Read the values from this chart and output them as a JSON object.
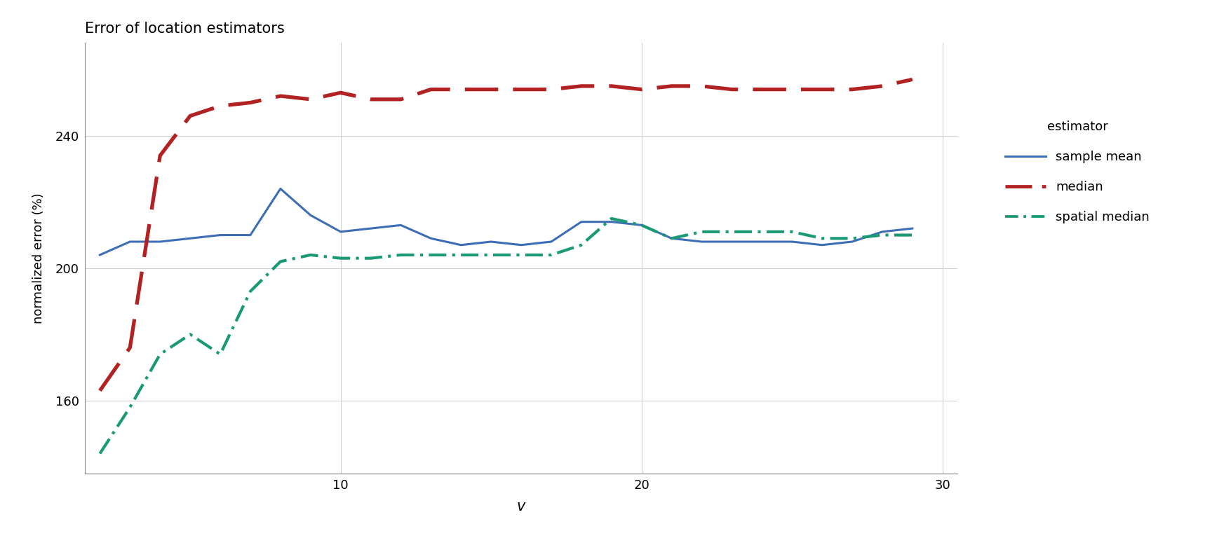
{
  "title": "Error of location estimators",
  "xlabel": "v",
  "ylabel": "normalized error (%)",
  "legend_title": "estimator",
  "background_color": "#ffffff",
  "panel_color": "#ffffff",
  "grid_color": "#d0d0d0",
  "xlim": [
    1.5,
    30.5
  ],
  "ylim": [
    138,
    268
  ],
  "yticks": [
    160,
    200,
    240
  ],
  "xticks": [
    10,
    20,
    30
  ],
  "x": [
    2,
    3,
    4,
    5,
    6,
    7,
    8,
    9,
    10,
    11,
    12,
    13,
    14,
    15,
    16,
    17,
    18,
    19,
    20,
    21,
    22,
    23,
    24,
    25,
    26,
    27,
    28,
    29
  ],
  "sample_mean": [
    204,
    208,
    208,
    209,
    210,
    210,
    224,
    216,
    211,
    212,
    213,
    209,
    207,
    208,
    207,
    208,
    214,
    214,
    213,
    209,
    208,
    208,
    208,
    208,
    207,
    208,
    211,
    212
  ],
  "median": [
    163,
    176,
    234,
    246,
    249,
    250,
    252,
    251,
    253,
    251,
    251,
    254,
    254,
    254,
    254,
    254,
    255,
    255,
    254,
    255,
    255,
    254,
    254,
    254,
    254,
    254,
    255,
    257
  ],
  "spatial_median": [
    144,
    158,
    174,
    180,
    174,
    193,
    202,
    204,
    203,
    203,
    204,
    204,
    204,
    204,
    204,
    204,
    207,
    215,
    213,
    209,
    211,
    211,
    211,
    211,
    209,
    209,
    210,
    210
  ],
  "sample_mean_color": "#3d6db5",
  "median_color": "#b22222",
  "spatial_median_color": "#1a9975",
  "lw_mean": 2.2,
  "lw_median": 3.8,
  "lw_spatial": 3.0
}
